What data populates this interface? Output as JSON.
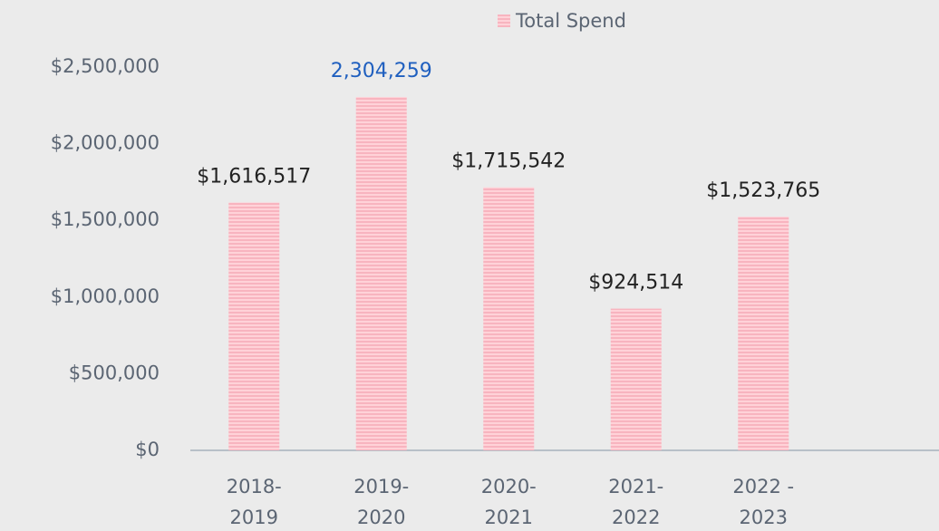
{
  "chart_data": {
    "type": "bar",
    "categories": [
      [
        "2018-",
        "2019"
      ],
      [
        "2019-",
        "2020"
      ],
      [
        "2020-",
        "2021"
      ],
      [
        "2021-",
        "2022"
      ],
      [
        "2022 -",
        "2023"
      ]
    ],
    "series": [
      {
        "name": "Total Spend",
        "color": "#ffc4cc",
        "values": [
          1616517,
          2304259,
          1715542,
          924514,
          1523765
        ],
        "value_labels": [
          "$1,616,517",
          "2,304,259",
          "$1,715,542",
          "$924,514",
          "$1,523,765"
        ],
        "value_label_colors": [
          "#222222",
          "#1f5fbf",
          "#222222",
          "#222222",
          "#222222"
        ]
      }
    ],
    "ylim": [
      0,
      2500000
    ],
    "yticks": [
      {
        "value": 0,
        "label": "$0"
      },
      {
        "value": 500000,
        "label": "$500,000"
      },
      {
        "value": 1000000,
        "label": "$1,000,000"
      },
      {
        "value": 1500000,
        "label": "$1,500,000"
      },
      {
        "value": 2000000,
        "label": "$2,000,000"
      },
      {
        "value": 2500000,
        "label": "$2,500,000"
      }
    ],
    "legend": "top",
    "grid": false
  }
}
